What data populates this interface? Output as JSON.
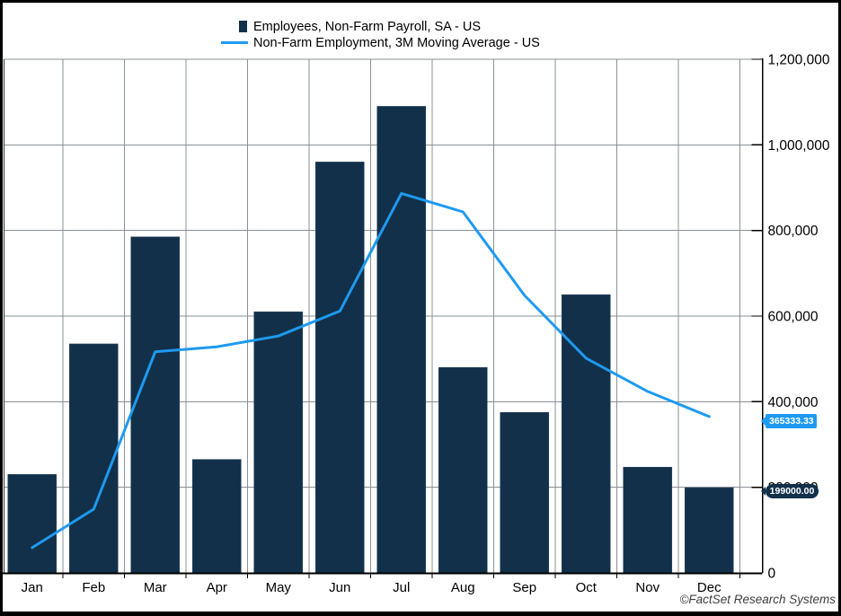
{
  "legend": {
    "items": [
      {
        "label": "Employees, Non-Farm Payroll, SA - US",
        "marker": "bar-swatch"
      },
      {
        "label": "Non-Farm Employment, 3M Moving Average - US",
        "marker": "line-swatch"
      }
    ]
  },
  "callouts": {
    "line_last_value": "365333.33",
    "bar_last_value": "199000.00"
  },
  "attribution": "©FactSet Research Systems",
  "colors": {
    "bar": "#12304A",
    "line": "#1E9AF0",
    "badge_line_bg": "#1E9AF0",
    "badge_bar_bg": "#12304A",
    "gridline": "#8a9096",
    "axis": "#000000",
    "background": "#ffffff"
  },
  "chart_data": {
    "type": "bar",
    "subtype": "combo-bar-line",
    "title": "",
    "xlabel": "",
    "ylabel": "",
    "categories": [
      "Jan",
      "Feb",
      "Mar",
      "Apr",
      "May",
      "Jun",
      "Jul",
      "Aug",
      "Sep",
      "Oct",
      "Nov",
      "Dec"
    ],
    "series": [
      {
        "name": "Employees, Non-Farm Payroll, SA - US",
        "type": "bar",
        "color": "#12304A",
        "values": [
          230000,
          535000,
          785000,
          265000,
          610000,
          960000,
          1090000,
          480000,
          375000,
          650000,
          247000,
          199000
        ]
      },
      {
        "name": "Non-Farm Employment, 3M Moving Average - US",
        "type": "line",
        "color": "#1E9AF0",
        "values": [
          59000,
          149000,
          516667,
          528333,
          553333,
          611667,
          886667,
          843333,
          648333,
          501667,
          424000,
          365333.33
        ]
      }
    ],
    "y_axis": {
      "position": "right",
      "min": 0,
      "max": 1200000,
      "tick_interval": 200000,
      "tick_labels": [
        "0",
        "200,000",
        "400,000",
        "600,000",
        "800,000",
        "1,000,000",
        "1,200,000"
      ]
    },
    "grid": true,
    "legend_position": "top"
  }
}
